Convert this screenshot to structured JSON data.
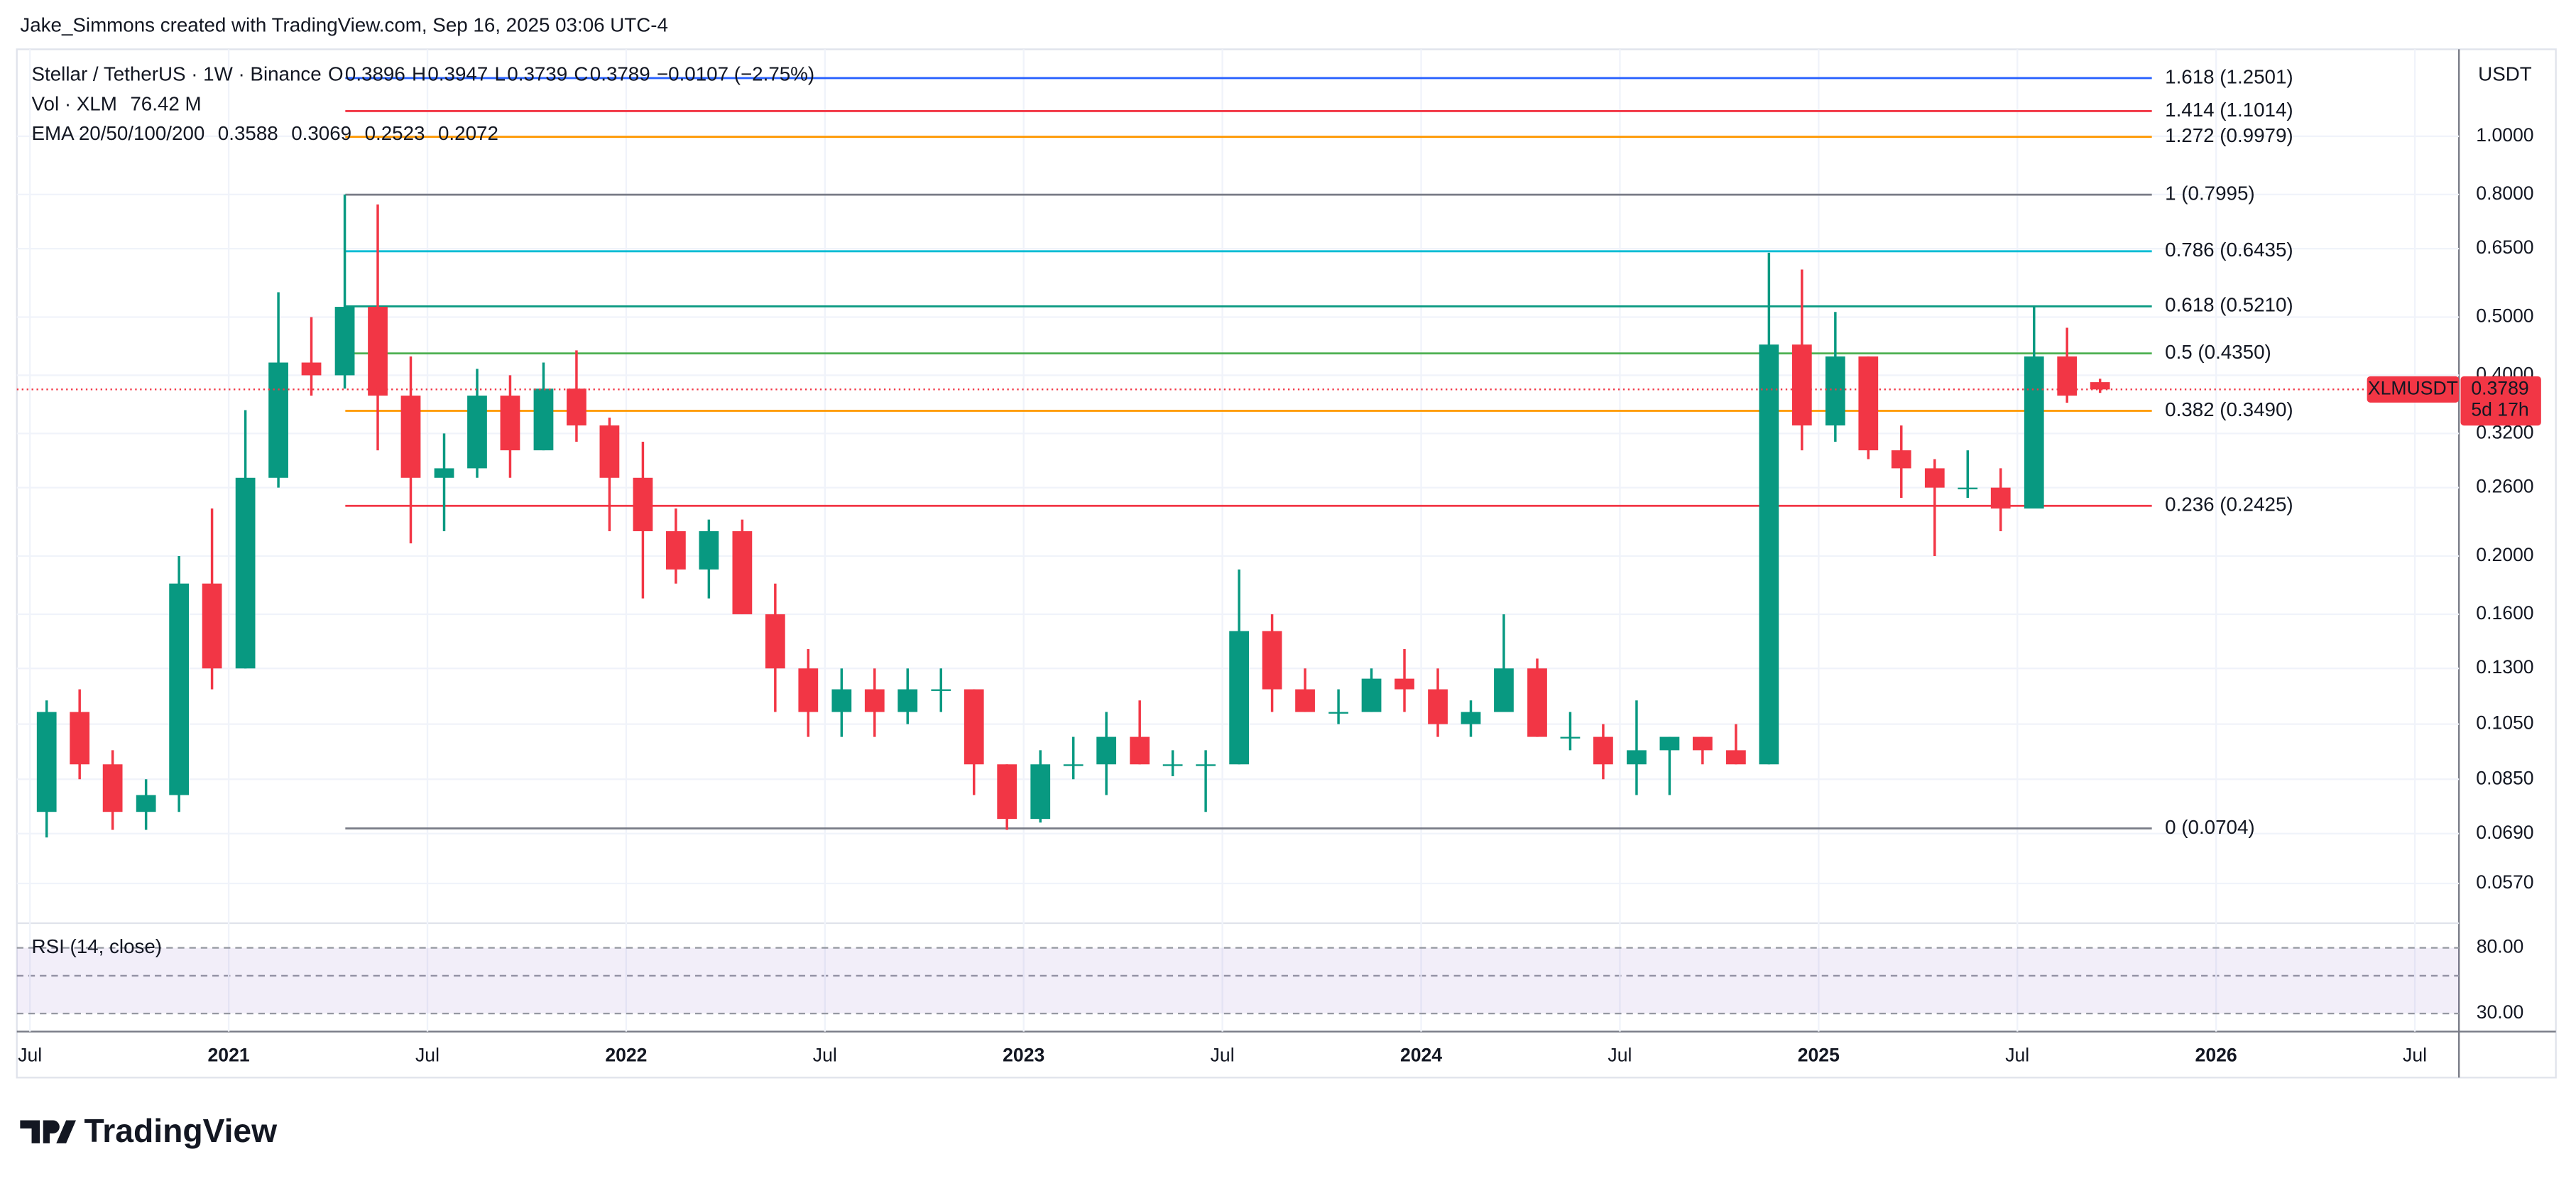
{
  "header": {
    "credit": "Jake_Simmons created with TradingView.com, Sep 16, 2025 03:06 UTC-4"
  },
  "legend": {
    "symbol": "Stellar / TetherUS · 1W · Binance",
    "ohlc": [
      {
        "key": "O",
        "value": 0.3896
      },
      {
        "key": "H",
        "value": 0.3947
      },
      {
        "key": "L",
        "value": 0.3739
      },
      {
        "key": "C",
        "value": 0.3789
      }
    ],
    "change": "−0.0107 (−2.75%)",
    "volume_label": "Vol · XLM",
    "volume_value": "76.42 M",
    "ema_label": "EMA 20/50/100/200",
    "ema": [
      {
        "value": 0.3588,
        "color": "#f23645"
      },
      {
        "value": 0.3069,
        "color": "#ff9800"
      },
      {
        "value": 0.2523,
        "color": "#26c6da"
      },
      {
        "value": 0.2072,
        "color": "#2a2ec4"
      }
    ]
  },
  "chart_data": {
    "type": "candlestick",
    "log_scale": true,
    "grid": true,
    "currency": "USDT",
    "up_color": "#089981",
    "down_color": "#f23645",
    "x": [
      2020.542,
      2020.625,
      2020.708,
      2020.792,
      2020.875,
      2020.958,
      2021.042,
      2021.125,
      2021.208,
      2021.292,
      2021.375,
      2021.458,
      2021.542,
      2021.625,
      2021.708,
      2021.792,
      2021.875,
      2021.958,
      2022.042,
      2022.125,
      2022.208,
      2022.292,
      2022.375,
      2022.458,
      2022.542,
      2022.625,
      2022.708,
      2022.792,
      2022.875,
      2022.958,
      2023.042,
      2023.125,
      2023.208,
      2023.292,
      2023.375,
      2023.458,
      2023.542,
      2023.625,
      2023.708,
      2023.792,
      2023.875,
      2023.958,
      2024.042,
      2024.125,
      2024.208,
      2024.292,
      2024.375,
      2024.458,
      2024.542,
      2024.625,
      2024.708,
      2024.792,
      2024.875,
      2024.958,
      2025.042,
      2025.125,
      2025.208,
      2025.292,
      2025.375,
      2025.458,
      2025.542,
      2025.625,
      2025.708
    ],
    "open": [
      0.075,
      0.11,
      0.09,
      0.075,
      0.08,
      0.18,
      0.13,
      0.27,
      0.42,
      0.4,
      0.52,
      0.37,
      0.27,
      0.28,
      0.37,
      0.3,
      0.38,
      0.33,
      0.27,
      0.22,
      0.19,
      0.22,
      0.16,
      0.13,
      0.11,
      0.12,
      0.11,
      0.12,
      0.12,
      0.09,
      0.073,
      0.09,
      0.09,
      0.1,
      0.09,
      0.09,
      0.09,
      0.15,
      0.12,
      0.11,
      0.11,
      0.125,
      0.12,
      0.105,
      0.11,
      0.13,
      0.1,
      0.1,
      0.09,
      0.095,
      0.1,
      0.095,
      0.09,
      0.45,
      0.33,
      0.43,
      0.3,
      0.28,
      0.26,
      0.26,
      0.24,
      0.43,
      0.3896
    ],
    "high": [
      0.115,
      0.12,
      0.095,
      0.085,
      0.2,
      0.24,
      0.35,
      0.55,
      0.5,
      0.8,
      0.77,
      0.43,
      0.32,
      0.41,
      0.4,
      0.42,
      0.44,
      0.34,
      0.31,
      0.24,
      0.23,
      0.23,
      0.18,
      0.14,
      0.13,
      0.13,
      0.13,
      0.13,
      0.12,
      0.09,
      0.095,
      0.1,
      0.11,
      0.115,
      0.095,
      0.095,
      0.19,
      0.16,
      0.13,
      0.12,
      0.13,
      0.14,
      0.13,
      0.115,
      0.16,
      0.135,
      0.11,
      0.105,
      0.115,
      0.1,
      0.1,
      0.105,
      0.64,
      0.6,
      0.51,
      0.43,
      0.33,
      0.29,
      0.3,
      0.28,
      0.52,
      0.48,
      0.3947
    ],
    "low": [
      0.068,
      0.085,
      0.07,
      0.07,
      0.075,
      0.12,
      0.13,
      0.26,
      0.37,
      0.38,
      0.3,
      0.21,
      0.22,
      0.27,
      0.27,
      0.3,
      0.31,
      0.22,
      0.17,
      0.18,
      0.17,
      0.16,
      0.11,
      0.1,
      0.1,
      0.1,
      0.105,
      0.11,
      0.08,
      0.07,
      0.072,
      0.085,
      0.08,
      0.09,
      0.086,
      0.075,
      0.09,
      0.11,
      0.11,
      0.105,
      0.11,
      0.11,
      0.1,
      0.1,
      0.11,
      0.1,
      0.095,
      0.085,
      0.08,
      0.08,
      0.09,
      0.09,
      0.09,
      0.3,
      0.31,
      0.29,
      0.25,
      0.2,
      0.25,
      0.22,
      0.24,
      0.36,
      0.3739
    ],
    "close": [
      0.11,
      0.09,
      0.075,
      0.08,
      0.18,
      0.13,
      0.27,
      0.42,
      0.4,
      0.52,
      0.37,
      0.27,
      0.28,
      0.37,
      0.3,
      0.38,
      0.33,
      0.27,
      0.22,
      0.19,
      0.22,
      0.16,
      0.13,
      0.11,
      0.12,
      0.11,
      0.12,
      0.12,
      0.09,
      0.073,
      0.09,
      0.09,
      0.1,
      0.09,
      0.09,
      0.09,
      0.15,
      0.12,
      0.11,
      0.11,
      0.125,
      0.12,
      0.105,
      0.11,
      0.13,
      0.1,
      0.1,
      0.09,
      0.095,
      0.1,
      0.095,
      0.09,
      0.45,
      0.33,
      0.43,
      0.3,
      0.28,
      0.26,
      0.26,
      0.24,
      0.43,
      0.37,
      0.3789
    ],
    "xlim": [
      2020.467,
      2026.611
    ],
    "xticks": [
      {
        "value": 2020.5,
        "label": "Jul"
      },
      2021,
      {
        "value": 2021.5,
        "label": "Jul"
      },
      2022,
      {
        "value": 2022.5,
        "label": "Jul"
      },
      2023,
      {
        "value": 2023.5,
        "label": "Jul"
      },
      2024,
      {
        "value": 2024.5,
        "label": "Jul"
      },
      2025,
      {
        "value": 2025.5,
        "label": "Jul"
      },
      2026,
      {
        "value": 2026.5,
        "label": "Jul"
      }
    ],
    "ylim": [
      0.0502,
      1.396
    ],
    "yticks": [
      {
        "value": 1,
        "label": "1.0000"
      },
      {
        "value": 0.8,
        "label": "0.8000"
      },
      {
        "value": 0.65,
        "label": "0.6500"
      },
      {
        "value": 0.5,
        "label": "0.5000"
      },
      {
        "value": 0.4,
        "label": "0.4000"
      },
      {
        "value": 0.32,
        "label": "0.3200"
      },
      {
        "value": 0.26,
        "label": "0.2600"
      },
      {
        "value": 0.2,
        "label": "0.2000"
      },
      {
        "value": 0.16,
        "label": "0.1600"
      },
      {
        "value": 0.13,
        "label": "0.1300"
      },
      {
        "value": 0.105,
        "label": "0.1050"
      },
      {
        "value": 0.085,
        "label": "0.0850"
      },
      {
        "value": 0.069,
        "label": "0.0690"
      },
      {
        "value": 0.057,
        "label": "0.0570"
      }
    ],
    "fib_levels": [
      {
        "label": "1.618 (1.2501)",
        "value": 1.2501,
        "color": "#2962ff"
      },
      {
        "label": "1.414 (1.1014)",
        "value": 1.1014,
        "color": "#f23645"
      },
      {
        "label": "1.272 (0.9979)",
        "value": 0.9979,
        "color": "#ff9800"
      },
      {
        "label": "1 (0.7995)",
        "value": 0.7995,
        "color": "#787b86"
      },
      {
        "label": "0.786 (0.6435)",
        "value": 0.6435,
        "color": "#00bcd4"
      },
      {
        "label": "0.618 (0.5210)",
        "value": 0.521,
        "color": "#089981"
      },
      {
        "label": "0.5 (0.4350)",
        "value": 0.435,
        "color": "#4caf50"
      },
      {
        "label": "0.382 (0.3490)",
        "value": 0.349,
        "color": "#ff9800"
      },
      {
        "label": "0.236 (0.2425)",
        "value": 0.2425,
        "color": "#f23645"
      },
      {
        "label": "0 (0.0704)",
        "value": 0.0704,
        "color": "#787b86"
      }
    ]
  },
  "price_tag": {
    "symbol": "XLMUSDT",
    "price": 0.3789,
    "countdown": "5d 17h",
    "color": "#f23645"
  },
  "rsi": {
    "label": "RSI (14, close)",
    "ylim": [
      17.5,
      97.5
    ],
    "yticks": [
      {
        "value": 80,
        "label": "80.00"
      },
      {
        "value": 30,
        "label": "30.00"
      }
    ]
  },
  "footer": {
    "brand": "TradingView"
  }
}
